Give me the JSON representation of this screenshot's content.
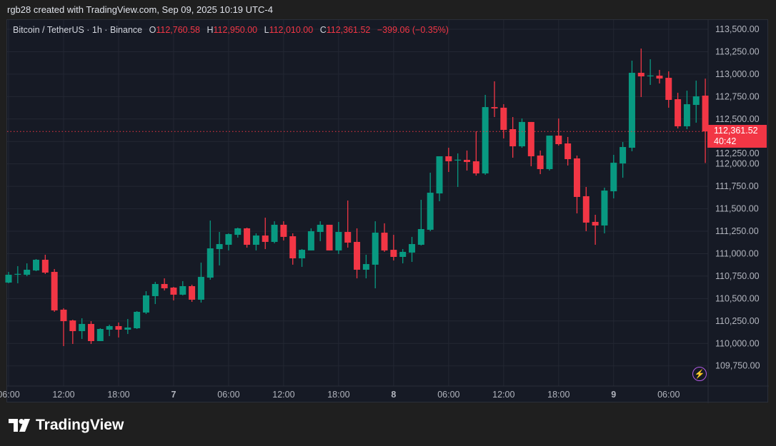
{
  "caption": "rgb28 created with TradingView.com, Sep 09, 2025 10:19 UTC-4",
  "legend": {
    "symbol": "Bitcoin / TetherUS · 1h · Binance",
    "o_label": "O",
    "o": "112,760.58",
    "h_label": "H",
    "h": "112,950.00",
    "l_label": "L",
    "l": "112,010.00",
    "c_label": "C",
    "c": "112,361.52",
    "change": "−399.06 (−0.35%)"
  },
  "last_price": {
    "price": "112,361.52",
    "countdown": "40:42"
  },
  "brand": {
    "name": "TradingView"
  },
  "icons": {
    "alert": "lightning-icon",
    "logo": "tradingview-logo-icon"
  },
  "colors": {
    "up": "#089981",
    "down": "#f23645",
    "background": "#161a25",
    "grid": "#232733"
  },
  "chart_data": {
    "type": "candlestick",
    "title": "Bitcoin / TetherUS · 1h · Binance",
    "interval_hours": 1,
    "start": "2025-09-06T06:00",
    "ylim": [
      109650,
      113600
    ],
    "grid": true,
    "current_price": 112361.52,
    "y_ticks": [
      "109,750.00",
      "110,000.00",
      "110,250.00",
      "110,500.00",
      "110,750.00",
      "111,000.00",
      "111,250.00",
      "111,500.00",
      "111,750.00",
      "112,000.00",
      "112,250.00",
      "112,500.00",
      "112,750.00",
      "113,000.00",
      "113,250.00",
      "113,500.00"
    ],
    "x_ticks": [
      {
        "label": "06:00",
        "time": "2025-09-06T06:00",
        "day": false
      },
      {
        "label": "12:00",
        "time": "2025-09-06T12:00",
        "day": false
      },
      {
        "label": "18:00",
        "time": "2025-09-06T18:00",
        "day": false
      },
      {
        "label": "7",
        "time": "2025-09-07T00:00",
        "day": true
      },
      {
        "label": "06:00",
        "time": "2025-09-07T06:00",
        "day": false
      },
      {
        "label": "12:00",
        "time": "2025-09-07T12:00",
        "day": false
      },
      {
        "label": "18:00",
        "time": "2025-09-07T18:00",
        "day": false
      },
      {
        "label": "8",
        "time": "2025-09-08T00:00",
        "day": true
      },
      {
        "label": "06:00",
        "time": "2025-09-08T06:00",
        "day": false
      },
      {
        "label": "12:00",
        "time": "2025-09-08T12:00",
        "day": false
      },
      {
        "label": "18:00",
        "time": "2025-09-08T18:00",
        "day": false
      },
      {
        "label": "9",
        "time": "2025-09-09T00:00",
        "day": true
      },
      {
        "label": "06:00",
        "time": "2025-09-09T06:00",
        "day": false
      }
    ],
    "candles_ohlc": [
      [
        110678,
        110797,
        110670,
        110765
      ],
      [
        110773,
        110861,
        110670,
        110775
      ],
      [
        110765,
        110892,
        110749,
        110821
      ],
      [
        110813,
        110940,
        110805,
        110932
      ],
      [
        110932,
        110988,
        110773,
        110789
      ],
      [
        110797,
        110829,
        110352,
        110368
      ],
      [
        110376,
        110392,
        109970,
        110248
      ],
      [
        110256,
        110264,
        109994,
        110137
      ],
      [
        110137,
        110280,
        110050,
        110217
      ],
      [
        110217,
        110248,
        109994,
        110026
      ],
      [
        110026,
        110169,
        110026,
        110161
      ],
      [
        110153,
        110209,
        110082,
        110193
      ],
      [
        110193,
        110233,
        110066,
        110153
      ],
      [
        110153,
        110272,
        110105,
        110177
      ],
      [
        110169,
        110360,
        110161,
        110352
      ],
      [
        110344,
        110582,
        110328,
        110535
      ],
      [
        110527,
        110686,
        110439,
        110662
      ],
      [
        110662,
        110725,
        110590,
        110614
      ],
      [
        110622,
        110630,
        110479,
        110543
      ],
      [
        110543,
        110694,
        110535,
        110638
      ],
      [
        110638,
        110654,
        110463,
        110487
      ],
      [
        110487,
        110900,
        110455,
        110741
      ],
      [
        110733,
        111369,
        110710,
        111059
      ],
      [
        111051,
        111242,
        110869,
        111107
      ],
      [
        111099,
        111226,
        111036,
        111218
      ],
      [
        111210,
        111290,
        111179,
        111282
      ],
      [
        111282,
        111290,
        111067,
        111099
      ],
      [
        111099,
        111226,
        111036,
        111202
      ],
      [
        111202,
        111401,
        111051,
        111131
      ],
      [
        111131,
        111361,
        111115,
        111322
      ],
      [
        111322,
        111361,
        111147,
        111187
      ],
      [
        111194,
        111226,
        110877,
        110948
      ],
      [
        110948,
        111051,
        110853,
        111043
      ],
      [
        111036,
        111282,
        111036,
        111250
      ],
      [
        111242,
        111361,
        111139,
        111322
      ],
      [
        111322,
        111322,
        111036,
        111036
      ],
      [
        111036,
        111354,
        110996,
        111242
      ],
      [
        111242,
        111592,
        111067,
        111123
      ],
      [
        111131,
        111282,
        110725,
        110821
      ],
      [
        110821,
        110988,
        110725,
        110884
      ],
      [
        110877,
        111361,
        110614,
        111234
      ],
      [
        111234,
        111338,
        111020,
        111036
      ],
      [
        111043,
        111210,
        110924,
        110964
      ],
      [
        110964,
        111051,
        110892,
        111020
      ],
      [
        111012,
        111187,
        110908,
        111107
      ],
      [
        111099,
        111600,
        111091,
        111274
      ],
      [
        111266,
        111902,
        111250,
        111679
      ],
      [
        111671,
        112085,
        111584,
        112085
      ],
      [
        112085,
        112180,
        111910,
        112029
      ],
      [
        112045,
        112117,
        111743,
        112047
      ],
      [
        112045,
        112149,
        111926,
        112021
      ],
      [
        112029,
        112363,
        111870,
        111894
      ],
      [
        111894,
        112769,
        111878,
        112633
      ],
      [
        112633,
        112920,
        112522,
        112618
      ],
      [
        112626,
        112665,
        112284,
        112379
      ],
      [
        112387,
        112522,
        112069,
        112196
      ],
      [
        112196,
        112506,
        112180,
        112467
      ],
      [
        112467,
        112467,
        111974,
        112085
      ],
      [
        112093,
        112149,
        111886,
        111942
      ],
      [
        111942,
        112315,
        111926,
        112315
      ],
      [
        112315,
        112506,
        112204,
        112220
      ],
      [
        112228,
        112300,
        111982,
        112053
      ],
      [
        112061,
        112093,
        111449,
        111632
      ],
      [
        111640,
        111743,
        111250,
        111346
      ],
      [
        111354,
        111433,
        111099,
        111314
      ],
      [
        111314,
        111735,
        111226,
        111703
      ],
      [
        111695,
        112101,
        111616,
        112013
      ],
      [
        112005,
        112244,
        111846,
        112188
      ],
      [
        112180,
        113150,
        112141,
        113015
      ],
      [
        113015,
        113285,
        112745,
        112975
      ],
      [
        112983,
        113166,
        112880,
        112985
      ],
      [
        112983,
        113047,
        112896,
        112951
      ],
      [
        112959,
        113031,
        112626,
        112713
      ],
      [
        112721,
        112792,
        112395,
        112419
      ],
      [
        112419,
        112816,
        112387,
        112665
      ],
      [
        112657,
        112928,
        112459,
        112753
      ],
      [
        112760.58,
        112950,
        112010,
        112361.52
      ]
    ]
  }
}
